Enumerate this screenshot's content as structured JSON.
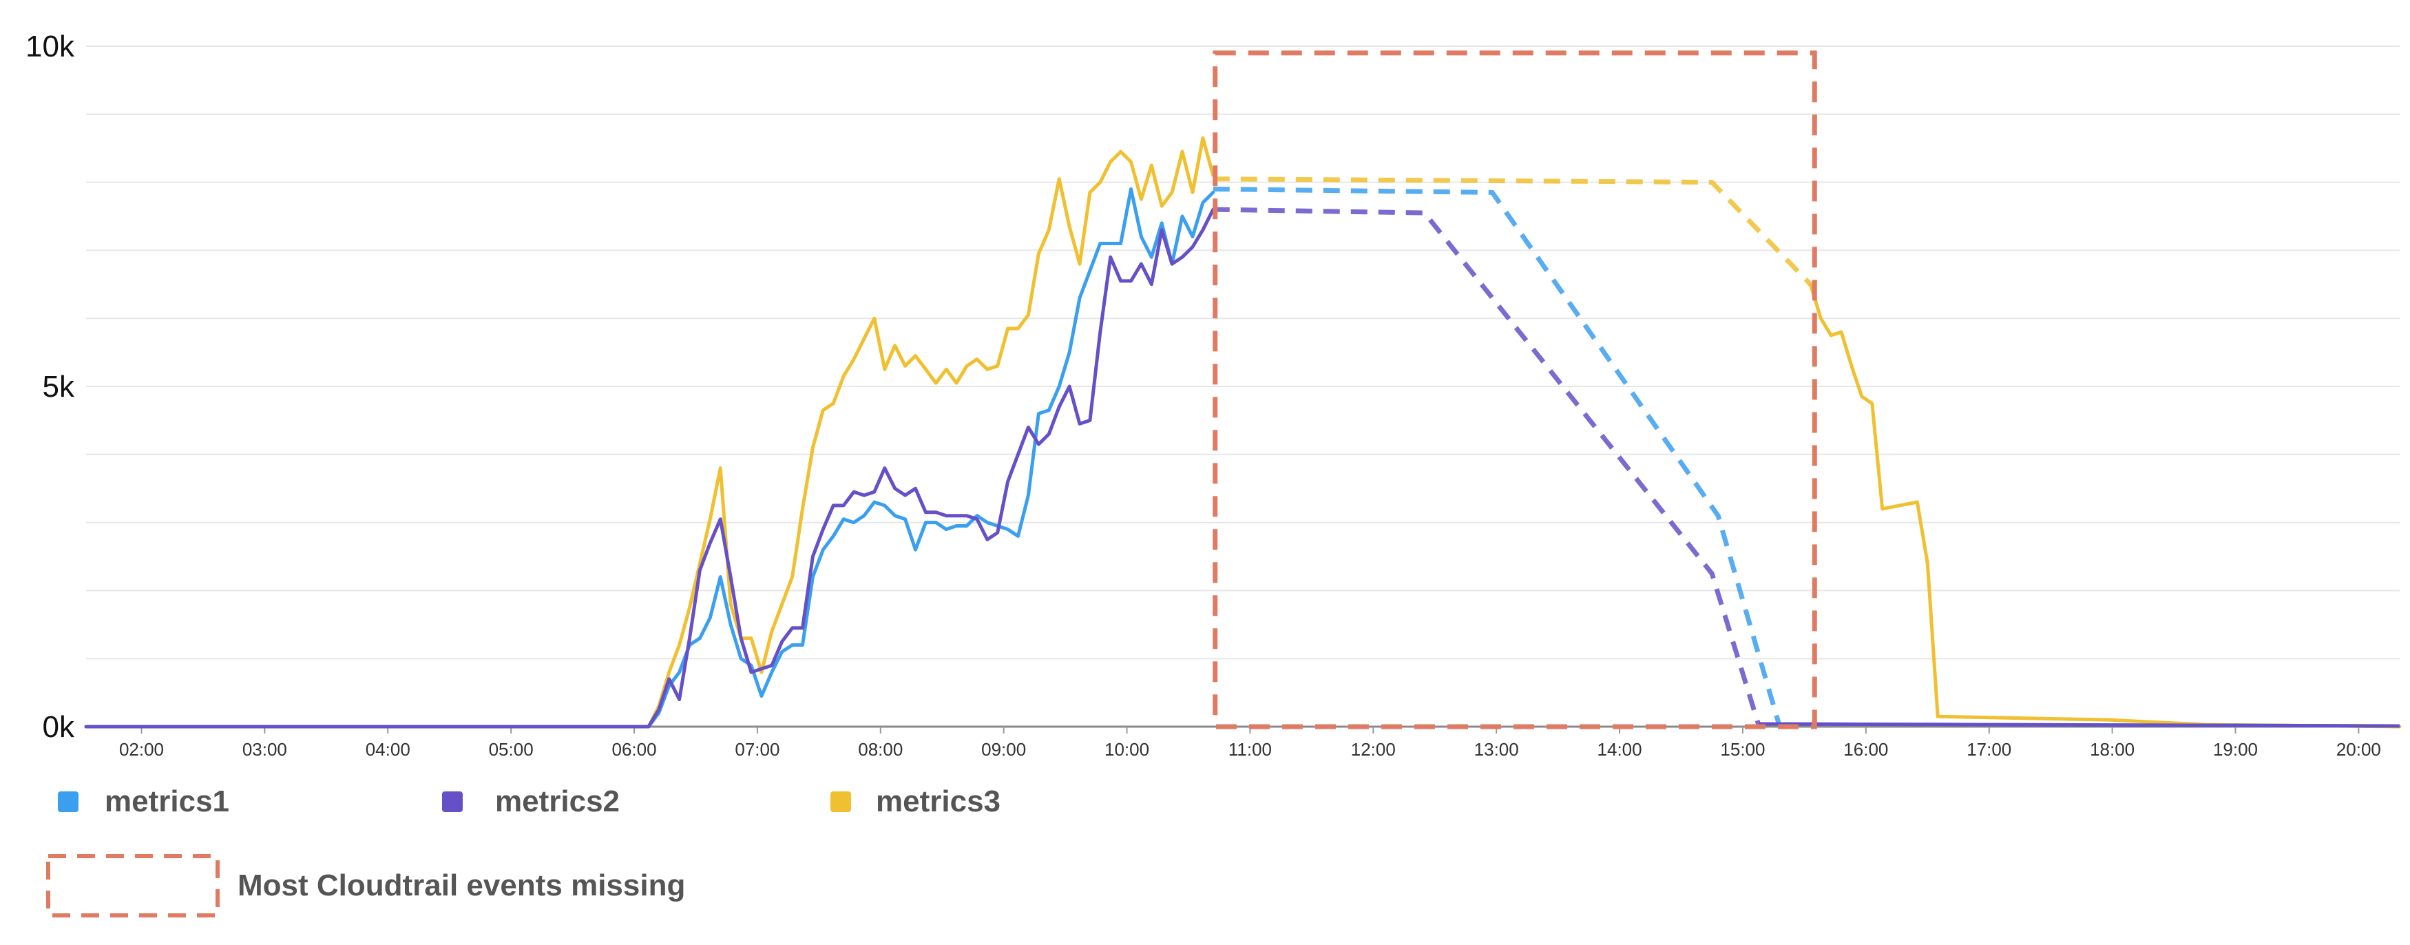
{
  "chart_data": {
    "type": "line",
    "title": "",
    "xlabel": "",
    "ylabel": "",
    "ylim": [
      0,
      10000
    ],
    "y_ticks": [
      {
        "value": 0,
        "label": "0k"
      },
      {
        "value": 5000,
        "label": "5k"
      },
      {
        "value": 10000,
        "label": "10k"
      }
    ],
    "y_gridlines": [
      0,
      1000,
      2000,
      3000,
      4000,
      5000,
      6000,
      7000,
      8000,
      9000,
      10000
    ],
    "xlim": [
      "01:33",
      "20:20"
    ],
    "x_ticks": [
      "02:00",
      "03:00",
      "04:00",
      "05:00",
      "06:00",
      "07:00",
      "08:00",
      "09:00",
      "10:00",
      "11:00",
      "12:00",
      "13:00",
      "14:00",
      "15:00",
      "16:00",
      "17:00",
      "18:00",
      "19:00",
      "20:00"
    ],
    "grid": true,
    "legend_position": "bottom-left",
    "series": [
      {
        "name": "metrics1",
        "color": "#3b9ff0",
        "points": [
          [
            "01:33",
            0
          ],
          [
            "06:07",
            0
          ],
          [
            "06:12",
            200
          ],
          [
            "06:17",
            600
          ],
          [
            "06:22",
            800
          ],
          [
            "06:27",
            1200
          ],
          [
            "06:32",
            1300
          ],
          [
            "06:37",
            1600
          ],
          [
            "06:42",
            2200
          ],
          [
            "06:47",
            1500
          ],
          [
            "06:52",
            1000
          ],
          [
            "06:57",
            900
          ],
          [
            "07:02",
            450
          ],
          [
            "07:07",
            800
          ],
          [
            "07:12",
            1100
          ],
          [
            "07:17",
            1200
          ],
          [
            "07:22",
            1200
          ],
          [
            "07:27",
            2200
          ],
          [
            "07:32",
            2600
          ],
          [
            "07:37",
            2800
          ],
          [
            "07:42",
            3050
          ],
          [
            "07:47",
            3000
          ],
          [
            "07:52",
            3100
          ],
          [
            "07:57",
            3300
          ],
          [
            "08:02",
            3250
          ],
          [
            "08:07",
            3100
          ],
          [
            "08:12",
            3050
          ],
          [
            "08:17",
            2600
          ],
          [
            "08:22",
            3000
          ],
          [
            "08:27",
            3000
          ],
          [
            "08:32",
            2900
          ],
          [
            "08:37",
            2950
          ],
          [
            "08:42",
            2950
          ],
          [
            "08:47",
            3100
          ],
          [
            "08:52",
            3000
          ],
          [
            "08:57",
            2950
          ],
          [
            "09:02",
            2900
          ],
          [
            "09:07",
            2800
          ],
          [
            "09:12",
            3400
          ],
          [
            "09:17",
            4600
          ],
          [
            "09:22",
            4650
          ],
          [
            "09:27",
            5000
          ],
          [
            "09:32",
            5500
          ],
          [
            "09:37",
            6300
          ],
          [
            "09:42",
            6700
          ],
          [
            "09:47",
            7100
          ],
          [
            "09:52",
            7100
          ],
          [
            "09:57",
            7100
          ],
          [
            "10:02",
            7900
          ],
          [
            "10:07",
            7200
          ],
          [
            "10:12",
            6900
          ],
          [
            "10:17",
            7400
          ],
          [
            "10:22",
            6800
          ],
          [
            "10:27",
            7500
          ],
          [
            "10:32",
            7200
          ],
          [
            "10:37",
            7700
          ],
          [
            "10:42",
            7850
          ]
        ],
        "missing_points": [
          [
            "10:42",
            7900
          ],
          [
            "12:58",
            7850
          ],
          [
            "14:48",
            3100
          ],
          [
            "15:18",
            0
          ]
        ]
      },
      {
        "name": "metrics2",
        "color": "#6650c8",
        "points": [
          [
            "01:33",
            0
          ],
          [
            "06:07",
            0
          ],
          [
            "06:12",
            250
          ],
          [
            "06:17",
            700
          ],
          [
            "06:22",
            400
          ],
          [
            "06:27",
            1300
          ],
          [
            "06:32",
            2300
          ],
          [
            "06:37",
            2700
          ],
          [
            "06:42",
            3050
          ],
          [
            "06:47",
            2200
          ],
          [
            "06:52",
            1300
          ],
          [
            "06:57",
            800
          ],
          [
            "07:02",
            850
          ],
          [
            "07:07",
            900
          ],
          [
            "07:12",
            1250
          ],
          [
            "07:17",
            1450
          ],
          [
            "07:22",
            1450
          ],
          [
            "07:27",
            2500
          ],
          [
            "07:32",
            2900
          ],
          [
            "07:37",
            3250
          ],
          [
            "07:42",
            3250
          ],
          [
            "07:47",
            3450
          ],
          [
            "07:52",
            3400
          ],
          [
            "07:57",
            3450
          ],
          [
            "08:02",
            3800
          ],
          [
            "08:07",
            3500
          ],
          [
            "08:12",
            3400
          ],
          [
            "08:17",
            3500
          ],
          [
            "08:22",
            3150
          ],
          [
            "08:27",
            3150
          ],
          [
            "08:32",
            3100
          ],
          [
            "08:37",
            3100
          ],
          [
            "08:42",
            3100
          ],
          [
            "08:47",
            3050
          ],
          [
            "08:52",
            2750
          ],
          [
            "08:57",
            2850
          ],
          [
            "09:02",
            3600
          ],
          [
            "09:07",
            4000
          ],
          [
            "09:12",
            4400
          ],
          [
            "09:17",
            4150
          ],
          [
            "09:22",
            4300
          ],
          [
            "09:27",
            4700
          ],
          [
            "09:32",
            5000
          ],
          [
            "09:37",
            4450
          ],
          [
            "09:42",
            4500
          ],
          [
            "09:47",
            5800
          ],
          [
            "09:52",
            6900
          ],
          [
            "09:57",
            6550
          ],
          [
            "10:02",
            6550
          ],
          [
            "10:07",
            6800
          ],
          [
            "10:12",
            6500
          ],
          [
            "10:17",
            7300
          ],
          [
            "10:22",
            6800
          ],
          [
            "10:27",
            6900
          ],
          [
            "10:32",
            7050
          ],
          [
            "10:37",
            7300
          ],
          [
            "10:42",
            7600
          ]
        ],
        "missing_points": [
          [
            "10:42",
            7600
          ],
          [
            "12:25",
            7550
          ],
          [
            "14:45",
            2250
          ],
          [
            "15:08",
            0
          ]
        ]
      },
      {
        "name": "metrics3",
        "color": "#f0c030",
        "points": [
          [
            "01:33",
            0
          ],
          [
            "06:07",
            0
          ],
          [
            "06:12",
            300
          ],
          [
            "06:17",
            800
          ],
          [
            "06:22",
            1200
          ],
          [
            "06:27",
            1750
          ],
          [
            "06:32",
            2400
          ],
          [
            "06:37",
            3050
          ],
          [
            "06:42",
            3800
          ],
          [
            "06:47",
            1800
          ],
          [
            "06:52",
            1300
          ],
          [
            "06:57",
            1300
          ],
          [
            "07:02",
            800
          ],
          [
            "07:07",
            1400
          ],
          [
            "07:12",
            1800
          ],
          [
            "07:17",
            2200
          ],
          [
            "07:22",
            3200
          ],
          [
            "07:27",
            4100
          ],
          [
            "07:32",
            4650
          ],
          [
            "07:37",
            4750
          ],
          [
            "07:42",
            5150
          ],
          [
            "07:47",
            5400
          ],
          [
            "07:52",
            5700
          ],
          [
            "07:57",
            6000
          ],
          [
            "08:02",
            5250
          ],
          [
            "08:07",
            5600
          ],
          [
            "08:12",
            5300
          ],
          [
            "08:17",
            5450
          ],
          [
            "08:22",
            5250
          ],
          [
            "08:27",
            5050
          ],
          [
            "08:32",
            5250
          ],
          [
            "08:37",
            5050
          ],
          [
            "08:42",
            5300
          ],
          [
            "08:47",
            5400
          ],
          [
            "08:52",
            5250
          ],
          [
            "08:57",
            5300
          ],
          [
            "09:02",
            5850
          ],
          [
            "09:07",
            5850
          ],
          [
            "09:12",
            6050
          ],
          [
            "09:17",
            6950
          ],
          [
            "09:22",
            7300
          ],
          [
            "09:27",
            8050
          ],
          [
            "09:32",
            7350
          ],
          [
            "09:37",
            6800
          ],
          [
            "09:42",
            7850
          ],
          [
            "09:47",
            8000
          ],
          [
            "09:52",
            8300
          ],
          [
            "09:57",
            8450
          ],
          [
            "10:02",
            8300
          ],
          [
            "10:07",
            7750
          ],
          [
            "10:12",
            8250
          ],
          [
            "10:17",
            7650
          ],
          [
            "10:22",
            7850
          ],
          [
            "10:27",
            8450
          ],
          [
            "10:32",
            7850
          ],
          [
            "10:37",
            8650
          ],
          [
            "10:42",
            8100
          ]
        ],
        "missing_points": [
          [
            "10:42",
            8050
          ],
          [
            "14:45",
            8000
          ],
          [
            "15:33",
            6500
          ]
        ],
        "points_after": [
          [
            "15:33",
            6500
          ],
          [
            "15:38",
            6000
          ],
          [
            "15:43",
            5750
          ],
          [
            "15:48",
            5800
          ],
          [
            "15:53",
            5300
          ],
          [
            "15:58",
            4850
          ],
          [
            "16:03",
            4750
          ],
          [
            "16:08",
            3200
          ],
          [
            "16:25",
            3300
          ],
          [
            "16:30",
            2400
          ],
          [
            "16:35",
            150
          ],
          [
            "17:58",
            100
          ],
          [
            "18:45",
            30
          ],
          [
            "20:20",
            0
          ]
        ]
      }
    ],
    "annotations": [
      {
        "type": "dashed-box",
        "color": "#e07b63",
        "x_range": [
          "10:43",
          "15:35"
        ],
        "y_range": [
          0,
          9900
        ],
        "label": "Most Cloudtrail events missing"
      }
    ]
  },
  "legend": {
    "items": [
      {
        "label": "metrics1",
        "color": "#3b9ff0"
      },
      {
        "label": "metrics2",
        "color": "#6650c8"
      },
      {
        "label": "metrics3",
        "color": "#f0c030"
      }
    ],
    "annotation_label": "Most Cloudtrail events missing",
    "annotation_color": "#e07b63"
  }
}
